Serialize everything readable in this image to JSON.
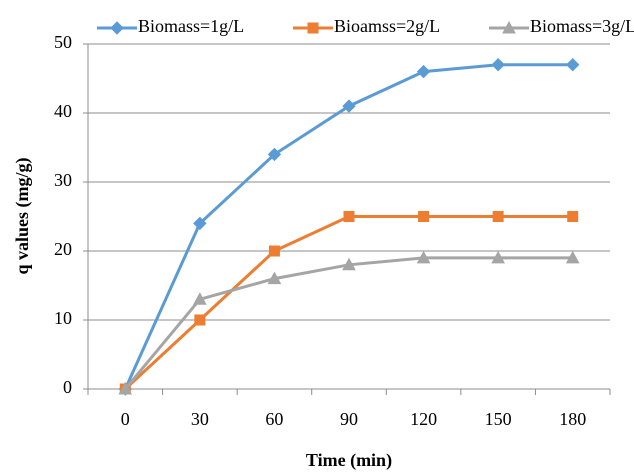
{
  "chart_data": {
    "type": "line",
    "x_label": "Time (min)",
    "y_label": "q values (mg/g)",
    "categories": [
      "0",
      "30",
      "60",
      "90",
      "120",
      "150",
      "180"
    ],
    "series": [
      {
        "name": "Biomass=1g/L",
        "color": "#5b9bd5",
        "marker": "diamond",
        "values": [
          0,
          24,
          34,
          41,
          46,
          47,
          47
        ]
      },
      {
        "name": "Bioamss=2g/L",
        "color": "#ed7d31",
        "marker": "square",
        "values": [
          0,
          10,
          20,
          25,
          25,
          25,
          25
        ]
      },
      {
        "name": "Biomass=3g/L",
        "color": "#a5a5a5",
        "marker": "triangle",
        "values": [
          0,
          13,
          16,
          18,
          19,
          19,
          19
        ]
      }
    ],
    "ylim": [
      0,
      50
    ],
    "yticks": [
      0,
      10,
      20,
      30,
      40,
      50
    ],
    "grid": true,
    "legend": "top"
  }
}
